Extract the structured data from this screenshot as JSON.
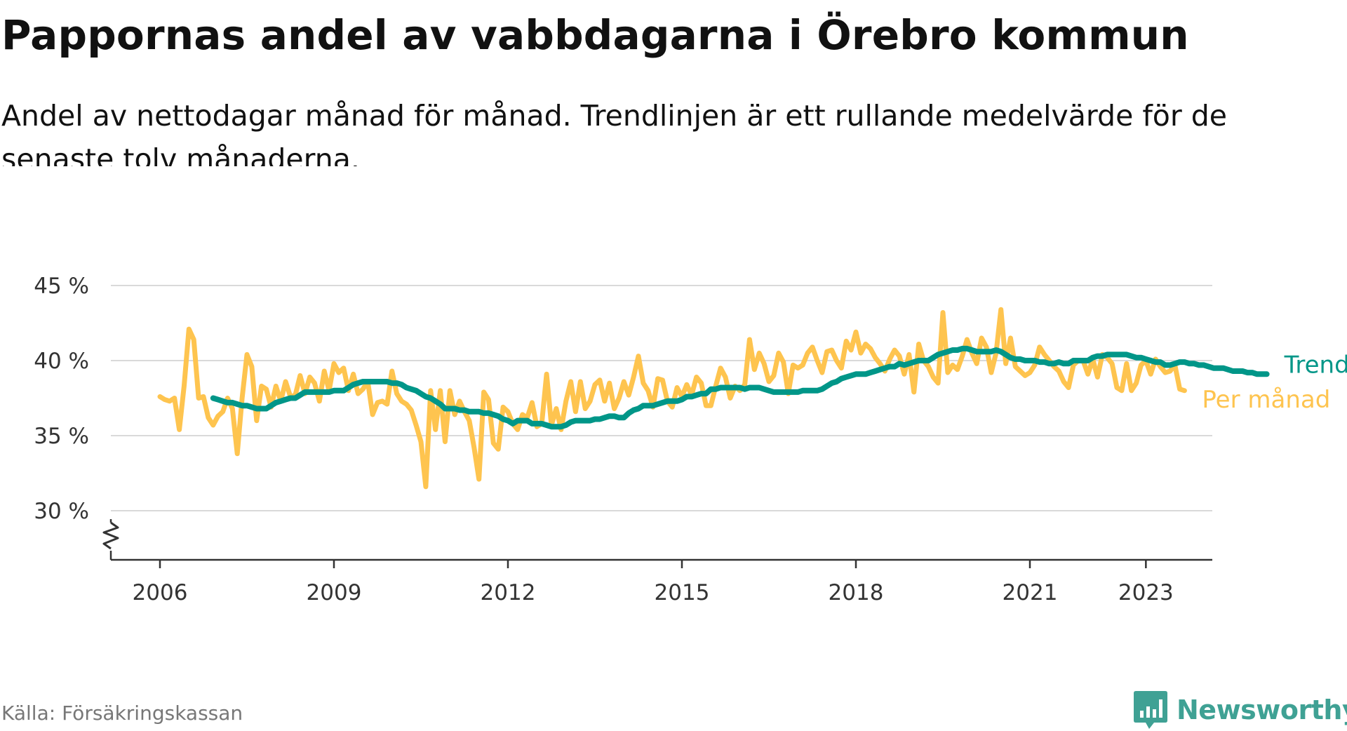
{
  "header": {
    "title": "Pappornas andel av vabbdagarna i Örebro kommun",
    "subtitle": "Andel av nettodagar månad för månad. Trendlinjen är ett rullande medelvärde för de senaste tolv månaderna."
  },
  "footer": {
    "source": "Källa: Försäkringskassan",
    "brand": "Newsworthy"
  },
  "colors": {
    "monthly": "#fec44f",
    "trend": "#009688",
    "grid": "#d9d9d9",
    "axis": "#333333",
    "brand": "#3fa194"
  },
  "chart_data": {
    "type": "line",
    "title": "Pappornas andel av vabbdagarna i Örebro kommun",
    "xlabel": "",
    "ylabel": "",
    "x_ticks": [
      "2006",
      "2009",
      "2012",
      "2015",
      "2018",
      "2021",
      "2023"
    ],
    "y_ticks": [
      "30 %",
      "35 %",
      "40 %",
      "45 %"
    ],
    "ylim": [
      30,
      45
    ],
    "y_axis_break": true,
    "grid": "horizontal",
    "legend": "inline labels at line ends",
    "series": [
      {
        "name": "Per månad",
        "x_start": "2006-01",
        "interval": "month",
        "values": [
          37.6,
          37.4,
          37.3,
          37.5,
          35.4,
          38.3,
          42.1,
          41.4,
          37.5,
          37.6,
          36.2,
          35.7,
          36.3,
          36.6,
          37.5,
          36.8,
          33.8,
          37.5,
          40.4,
          39.6,
          36.0,
          38.3,
          38.1,
          36.9,
          38.3,
          37.3,
          38.6,
          37.6,
          37.7,
          39.0,
          37.8,
          38.9,
          38.5,
          37.3,
          39.3,
          38.0,
          39.8,
          39.2,
          39.5,
          38.0,
          39.1,
          37.8,
          38.1,
          38.6,
          36.4,
          37.2,
          37.3,
          37.1,
          39.3,
          37.8,
          37.3,
          37.1,
          36.7,
          35.7,
          34.6,
          31.6,
          38.0,
          35.4,
          38.0,
          34.6,
          38.0,
          36.4,
          37.3,
          36.6,
          36.0,
          34.2,
          32.1,
          37.9,
          37.4,
          34.5,
          34.1,
          36.9,
          36.6,
          35.8,
          35.4,
          36.4,
          36.2,
          37.2,
          35.6,
          35.8,
          39.1,
          35.7,
          36.8,
          35.4,
          37.3,
          38.6,
          36.6,
          38.6,
          36.8,
          37.3,
          38.4,
          38.7,
          37.3,
          38.5,
          36.8,
          37.5,
          38.6,
          37.7,
          38.9,
          40.3,
          38.5,
          38.0,
          36.9,
          38.8,
          38.7,
          37.3,
          36.9,
          38.2,
          37.6,
          38.4,
          37.7,
          38.9,
          38.5,
          37.0,
          37.0,
          38.3,
          39.5,
          38.9,
          37.5,
          38.3,
          38.0,
          38.4,
          41.4,
          39.4,
          40.5,
          39.8,
          38.6,
          39.0,
          40.5,
          39.9,
          37.8,
          39.7,
          39.5,
          39.7,
          40.5,
          40.9,
          40.0,
          39.2,
          40.6,
          40.7,
          40.0,
          39.5,
          41.3,
          40.7,
          41.9,
          40.5,
          41.1,
          40.8,
          40.2,
          39.8,
          39.3,
          40.1,
          40.7,
          40.3,
          39.1,
          40.4,
          37.9,
          41.1,
          40.0,
          39.6,
          38.9,
          38.5,
          43.2,
          39.2,
          39.7,
          39.4,
          40.3,
          41.4,
          40.5,
          39.8,
          41.5,
          40.9,
          39.2,
          40.5,
          43.4,
          39.8,
          41.5,
          39.6,
          39.3,
          39.0,
          39.2,
          39.7,
          40.9,
          40.4,
          40.0,
          39.6,
          39.3,
          38.6,
          38.2,
          39.7,
          40.0,
          40.0,
          39.1,
          40.1,
          38.9,
          40.4,
          40.2,
          39.8,
          38.2,
          38.0,
          39.8,
          38.0,
          38.5,
          39.7,
          40.0,
          39.1,
          40.1,
          39.6,
          39.2,
          39.3,
          39.7,
          38.1,
          38.0
        ]
      },
      {
        "name": "Trend",
        "x_start": "2006-12",
        "interval": "month",
        "values": [
          37.5,
          37.4,
          37.3,
          37.2,
          37.2,
          37.1,
          37.0,
          37.0,
          36.9,
          36.8,
          36.8,
          36.8,
          37.0,
          37.2,
          37.3,
          37.4,
          37.5,
          37.5,
          37.7,
          37.9,
          37.9,
          37.9,
          37.9,
          37.9,
          37.9,
          38.0,
          38.0,
          38.0,
          38.2,
          38.4,
          38.5,
          38.6,
          38.6,
          38.6,
          38.6,
          38.6,
          38.6,
          38.5,
          38.5,
          38.4,
          38.2,
          38.1,
          38.0,
          37.8,
          37.6,
          37.5,
          37.3,
          37.1,
          36.8,
          36.8,
          36.8,
          36.7,
          36.7,
          36.6,
          36.6,
          36.6,
          36.5,
          36.5,
          36.4,
          36.3,
          36.1,
          36.0,
          35.8,
          36.0,
          36.0,
          36.0,
          35.8,
          35.8,
          35.8,
          35.7,
          35.6,
          35.6,
          35.6,
          35.7,
          35.9,
          36.0,
          36.0,
          36.0,
          36.0,
          36.1,
          36.1,
          36.2,
          36.3,
          36.3,
          36.2,
          36.2,
          36.5,
          36.7,
          36.8,
          37.0,
          37.0,
          37.0,
          37.1,
          37.2,
          37.3,
          37.3,
          37.3,
          37.4,
          37.6,
          37.6,
          37.7,
          37.8,
          37.8,
          38.1,
          38.1,
          38.2,
          38.2,
          38.2,
          38.2,
          38.2,
          38.1,
          38.2,
          38.2,
          38.2,
          38.1,
          38.0,
          37.9,
          37.9,
          37.9,
          37.9,
          37.9,
          37.9,
          38.0,
          38.0,
          38.0,
          38.0,
          38.1,
          38.3,
          38.5,
          38.6,
          38.8,
          38.9,
          39.0,
          39.1,
          39.1,
          39.1,
          39.2,
          39.3,
          39.4,
          39.5,
          39.6,
          39.6,
          39.8,
          39.7,
          39.8,
          39.9,
          40.0,
          40.0,
          40.0,
          40.2,
          40.4,
          40.5,
          40.6,
          40.7,
          40.7,
          40.8,
          40.8,
          40.7,
          40.6,
          40.6,
          40.6,
          40.6,
          40.7,
          40.6,
          40.4,
          40.2,
          40.1,
          40.1,
          40.0,
          40.0,
          40.0,
          39.9,
          39.9,
          39.8,
          39.8,
          39.9,
          39.8,
          39.8,
          40.0,
          40.0,
          40.0,
          40.0,
          40.2,
          40.3,
          40.3,
          40.4,
          40.4,
          40.4,
          40.4,
          40.4,
          40.3,
          40.2,
          40.2,
          40.1,
          40.0,
          39.9,
          39.9,
          39.7,
          39.7,
          39.8,
          39.9,
          39.9,
          39.8,
          39.8,
          39.7,
          39.7,
          39.6,
          39.5,
          39.5,
          39.5,
          39.4,
          39.3,
          39.3,
          39.3,
          39.2,
          39.2,
          39.1,
          39.1,
          39.1
        ]
      }
    ]
  }
}
